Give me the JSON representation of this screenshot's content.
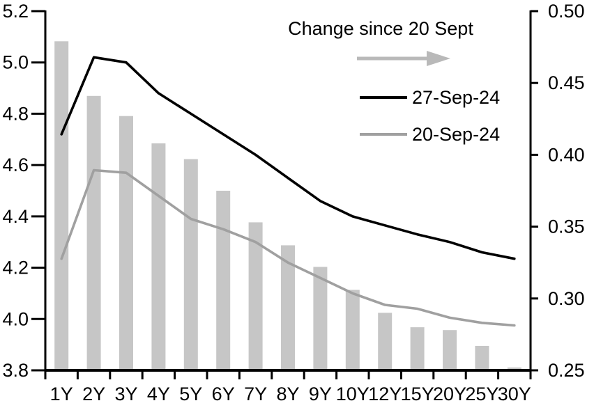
{
  "chart_data": {
    "type": "combo-bar-line",
    "title": "",
    "categories": [
      "1Y",
      "2Y",
      "3Y",
      "4Y",
      "5Y",
      "6Y",
      "7Y",
      "8Y",
      "9Y",
      "10Y",
      "12Y",
      "15Y",
      "20Y",
      "25Y",
      "30Y"
    ],
    "series": [
      {
        "name": "Change since 20 Sept",
        "type": "bar",
        "axis": "right",
        "color": "#c6c6c6",
        "values": [
          0.479,
          0.441,
          0.427,
          0.408,
          0.397,
          0.375,
          0.353,
          0.337,
          0.322,
          0.306,
          0.29,
          0.28,
          0.278,
          0.267,
          0.252
        ]
      },
      {
        "name": "27-Sep-24",
        "type": "line",
        "axis": "left",
        "color": "#000000",
        "values": [
          4.72,
          5.02,
          5.0,
          4.88,
          4.8,
          4.72,
          4.64,
          4.55,
          4.46,
          4.4,
          4.365,
          4.33,
          4.3,
          4.26,
          4.235
        ]
      },
      {
        "name": "20-Sep-24",
        "type": "line",
        "axis": "left",
        "color": "#a0a0a0",
        "values": [
          4.235,
          4.58,
          4.57,
          4.48,
          4.39,
          4.35,
          4.3,
          4.22,
          4.16,
          4.1,
          4.055,
          4.04,
          4.005,
          3.985,
          3.975
        ]
      }
    ],
    "left_axis": {
      "min": 3.8,
      "max": 5.2,
      "step": 0.2,
      "tick_labels": [
        "5.2",
        "5.0",
        "4.8",
        "4.6",
        "4.4",
        "4.2",
        "4.0",
        "3.8"
      ]
    },
    "right_axis": {
      "min": 0.25,
      "max": 0.5,
      "step": 0.05,
      "tick_labels": [
        "0.50",
        "0.45",
        "0.40",
        "0.35",
        "0.30",
        "0.25"
      ]
    },
    "legend": {
      "position": "top-center-inside",
      "title": "Change since 20 Sept",
      "arrow": {
        "direction": "right",
        "color": "#b9b9b9"
      },
      "entries": [
        {
          "label": "27-Sep-24",
          "color": "#000000"
        },
        {
          "label": "20-Sep-24",
          "color": "#a0a0a0"
        }
      ]
    },
    "grid": false,
    "background": "#ffffff"
  }
}
